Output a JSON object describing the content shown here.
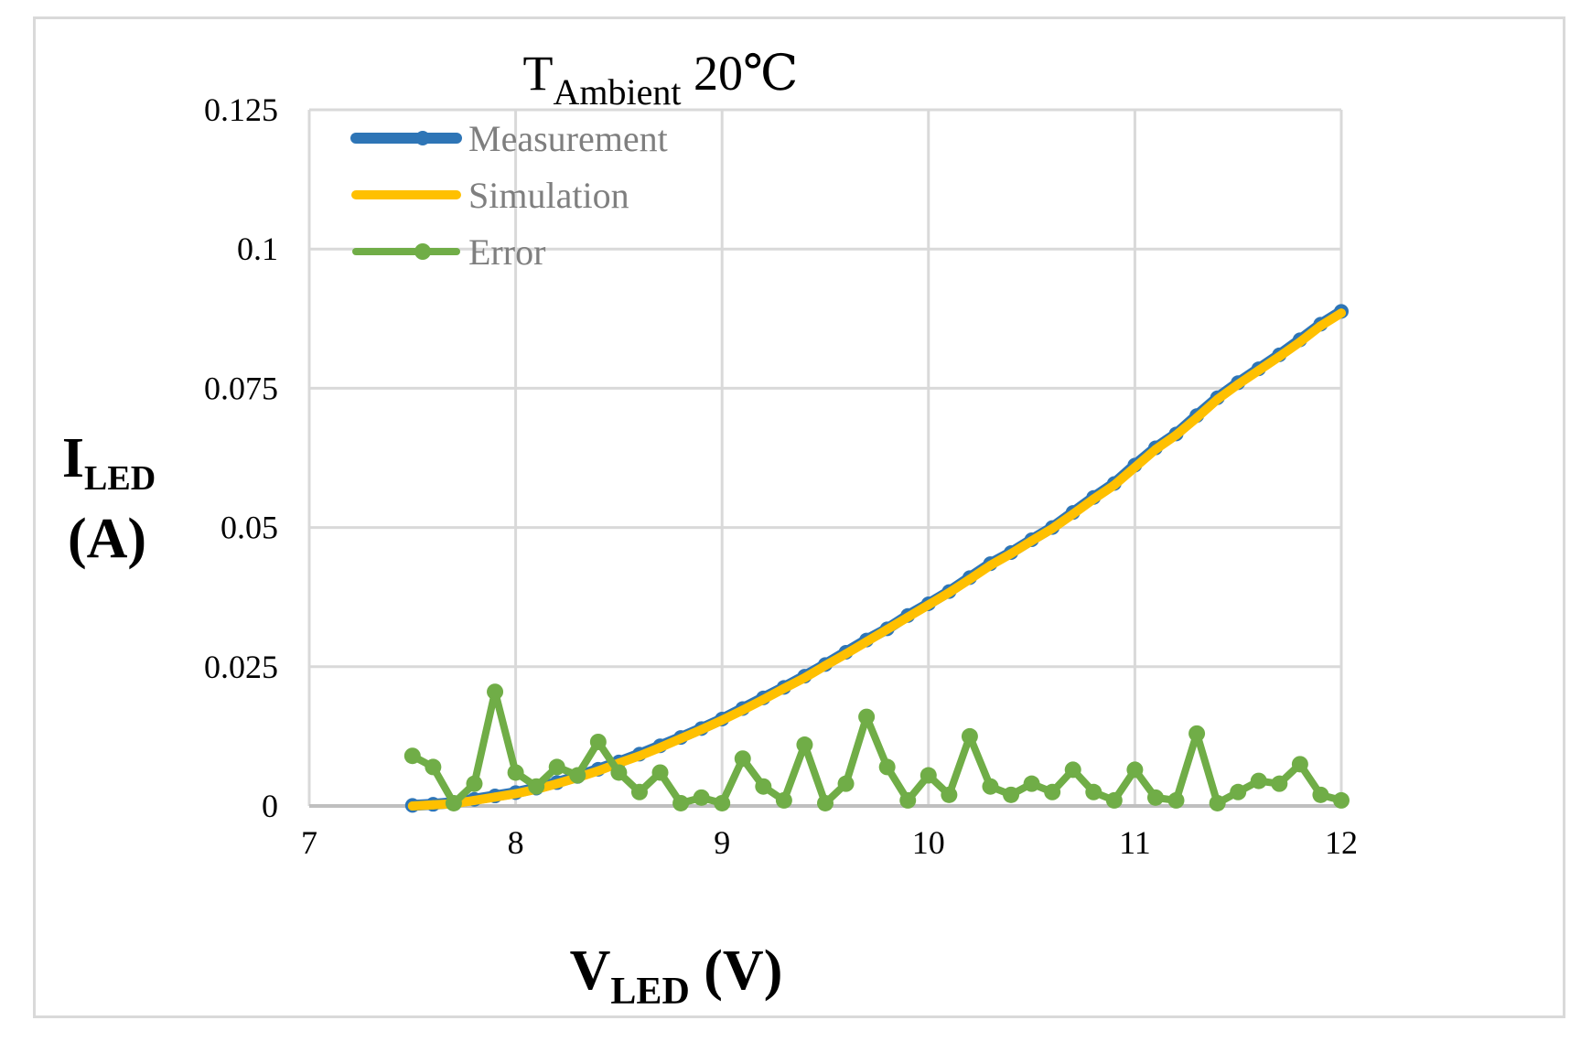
{
  "chart_data": {
    "type": "line",
    "title": {
      "main": "T",
      "sub": "Ambient",
      "rest": " 20℃"
    },
    "xlabel": {
      "main": "V",
      "sub": "LED",
      "rest": " (V)"
    },
    "ylabel": {
      "line1_main": "I",
      "line1_sub": "LED",
      "line2": "(A)"
    },
    "xlim": [
      7,
      12
    ],
    "ylim": [
      0,
      0.125
    ],
    "xticks": [
      7,
      8,
      9,
      10,
      11,
      12
    ],
    "xtick_labels": [
      "7",
      "8",
      "9",
      "10",
      "11",
      "12"
    ],
    "yticks": [
      0,
      0.025,
      0.05,
      0.075,
      0.1,
      0.125
    ],
    "ytick_labels": [
      "0",
      "0.025",
      "0.05",
      "0.075",
      "0.1",
      "0.125"
    ],
    "grid": true,
    "legend_position": "top-left",
    "x": [
      7.5,
      7.6,
      7.7,
      7.8,
      7.9,
      8.0,
      8.1,
      8.2,
      8.3,
      8.4,
      8.5,
      8.6,
      8.7,
      8.8,
      8.9,
      9.0,
      9.1,
      9.2,
      9.3,
      9.4,
      9.5,
      9.6,
      9.7,
      9.8,
      9.9,
      10.0,
      10.1,
      10.2,
      10.3,
      10.4,
      10.5,
      10.6,
      10.7,
      10.8,
      10.9,
      11.0,
      11.1,
      11.2,
      11.3,
      11.4,
      11.5,
      11.6,
      11.7,
      11.8,
      11.9,
      12.0
    ],
    "series": [
      {
        "name": "Measurement",
        "color": "#2e75b6",
        "values": [
          0.0001,
          0.0003,
          0.0006,
          0.0012,
          0.0018,
          0.0024,
          0.0032,
          0.0042,
          0.0053,
          0.0066,
          0.0079,
          0.0093,
          0.0108,
          0.0123,
          0.0139,
          0.0156,
          0.0175,
          0.0194,
          0.0213,
          0.0233,
          0.0254,
          0.0276,
          0.0298,
          0.0318,
          0.0342,
          0.0363,
          0.0385,
          0.041,
          0.0435,
          0.0455,
          0.0478,
          0.05,
          0.0527,
          0.0554,
          0.0579,
          0.0612,
          0.0643,
          0.0668,
          0.0701,
          0.0733,
          0.076,
          0.0785,
          0.081,
          0.0837,
          0.0865,
          0.0888
        ]
      },
      {
        "name": "Simulation",
        "color": "#ffc000",
        "values": [
          0.0,
          0.0002,
          0.0004,
          0.001,
          0.0016,
          0.0022,
          0.003,
          0.004,
          0.0051,
          0.0063,
          0.0077,
          0.009,
          0.0105,
          0.0121,
          0.0137,
          0.0154,
          0.0172,
          0.0191,
          0.0211,
          0.023,
          0.0252,
          0.0273,
          0.0295,
          0.0317,
          0.0339,
          0.0361,
          0.0383,
          0.0407,
          0.0432,
          0.0453,
          0.0476,
          0.0498,
          0.0524,
          0.0551,
          0.0576,
          0.0608,
          0.064,
          0.0666,
          0.0697,
          0.073,
          0.0757,
          0.0782,
          0.0807,
          0.0833,
          0.0862,
          0.0885
        ]
      },
      {
        "name": "Error",
        "color": "#70ad47",
        "values": [
          0.009,
          0.007,
          0.0005,
          0.004,
          0.0205,
          0.006,
          0.0035,
          0.007,
          0.0055,
          0.0115,
          0.006,
          0.0025,
          0.006,
          0.0005,
          0.0015,
          0.0005,
          0.0085,
          0.0035,
          0.001,
          0.011,
          0.0005,
          0.004,
          0.016,
          0.007,
          0.001,
          0.0055,
          0.002,
          0.0125,
          0.0035,
          0.002,
          0.004,
          0.0025,
          0.0065,
          0.0025,
          0.001,
          0.0065,
          0.0015,
          0.001,
          0.013,
          0.0005,
          0.0025,
          0.0045,
          0.004,
          0.0075,
          0.002,
          0.001
        ]
      }
    ]
  }
}
